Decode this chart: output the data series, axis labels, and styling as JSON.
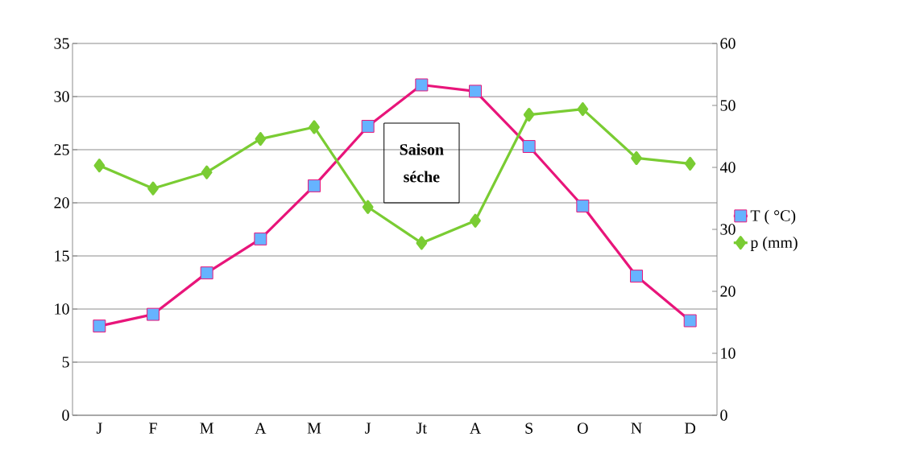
{
  "chart_data": {
    "type": "line",
    "categories": [
      "J",
      "F",
      "M",
      "A",
      "M",
      "J",
      "Jt",
      "A",
      "S",
      "O",
      "N",
      "D"
    ],
    "series": [
      {
        "name": "T ( °C)",
        "color": "#e8157a",
        "marker": "square",
        "values": [
          8.4,
          9.5,
          13.4,
          16.6,
          21.6,
          27.2,
          31.1,
          30.5,
          25.3,
          19.7,
          13.1,
          8.9
        ]
      },
      {
        "name": "p (mm)",
        "color": "#7acc33",
        "marker": "diamond",
        "axis": "y2",
        "values": [
          40.3,
          36.6,
          39.2,
          44.6,
          46.5,
          33.6,
          27.8,
          31.4,
          48.5,
          49.4,
          41.5,
          40.6
        ]
      }
    ],
    "ylim": [
      0,
      35
    ],
    "yticks": [
      0,
      5,
      10,
      15,
      20,
      25,
      30,
      35
    ],
    "y2lim": [
      0,
      60
    ],
    "y2ticks": [
      0,
      10,
      20,
      30,
      40,
      50,
      60
    ],
    "grid": "y",
    "legend": "right",
    "line_style": "solid",
    "annotations": [
      "**Saison séche**"
    ]
  }
}
